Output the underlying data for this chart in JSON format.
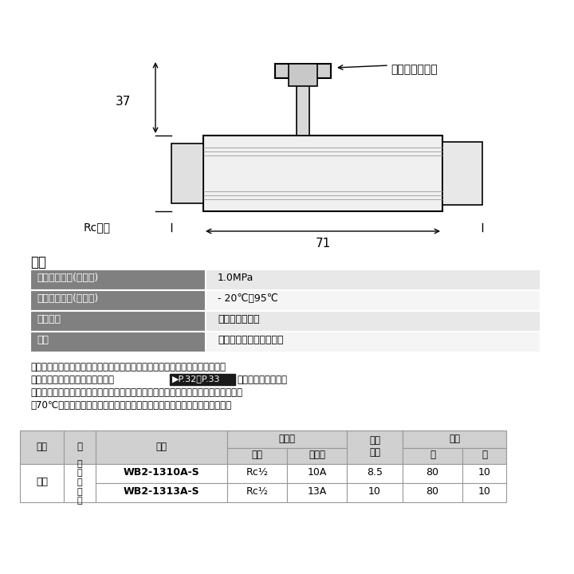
{
  "bg_color": "#ffffff",
  "spec_title": "仕様",
  "spec_rows": [
    {
      "項目": "最高許容圧力(バルブ)",
      "値": "1.0MPa"
    },
    {
      "項目": "使用温度範囲(バルブ)",
      "値": "- 20℃～95℃"
    },
    {
      "項目": "使用流体",
      "値": "冷温水・不凍液"
    },
    {
      "項目": "用途",
      "値": "給水・給湨・暖房・融雪"
    }
  ],
  "note_lines": [
    "・上記は継手部の仕様のため、実使用においての流体圧力と流体温度は、樹脂",
    "管の使用温度別最高使用圧力　▶P.32・P.33　をご確認下さい。",
    "・冷温水、不凍液以外には使用しないで下さい。灯油等の油類には使用できません。",
    "・70℃を超える湯を常時通水または循環する配管には使用しないで下さい。"
  ],
  "note2_line1_part1": "管の使用温度別最高使用圧力　",
  "note2_line1_badge": "▶P.32・P.33",
  "note2_line1_part2": "　をご確認下さい。",
  "table_header": {
    "tekiyo": "適用",
    "iro": "色",
    "hinban": "品番",
    "yobikei": "呼び径",
    "yobikei_neji": "ねじ",
    "yobikei_jushi": "樹脂管",
    "min_naikei": "最小内径",
    "irisu": "入数",
    "irisu_dai": "大",
    "irisu_sho": "小"
  },
  "table_rows": [
    {
      "tekiyo": "共用",
      "iro": "アイボリー",
      "hinban": "WB2-1310A-S",
      "neji": "Rc½",
      "jushi": "10A",
      "naikei": "8.5",
      "dai": "80",
      "sho": "10"
    },
    {
      "tekiyo": "",
      "iro": "",
      "hinban": "WB2-1313A-S",
      "neji": "Rc½",
      "jushi": "13A",
      "naikei": "10",
      "dai": "80",
      "sho": "10"
    }
  ],
  "dim_37": "37",
  "dim_71": "71",
  "label_rc": "Rcねじ",
  "label_color": "色（ハンドル）",
  "spec_header_color": "#808080",
  "spec_header_text_color": "#ffffff",
  "spec_row_bg1": "#e8e8e8",
  "spec_row_bg2": "#f5f5f5",
  "table_header_bg": "#d0d0d0",
  "table_border_color": "#999999",
  "badge_bg": "#1a1a1a",
  "badge_text": "#ffffff"
}
